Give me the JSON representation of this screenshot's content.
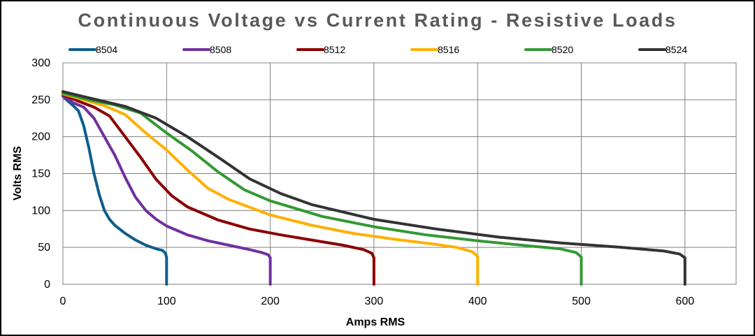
{
  "chart_data": {
    "type": "line",
    "title": "Continuous Voltage vs Current Rating - Resistive Loads",
    "xlabel": "Amps RMS",
    "ylabel": "Volts RMS",
    "xlim": [
      0,
      650
    ],
    "ylim": [
      0,
      300
    ],
    "x_ticks": [
      0,
      100,
      200,
      300,
      400,
      500,
      600
    ],
    "y_ticks": [
      0,
      50,
      100,
      150,
      200,
      250,
      300
    ],
    "x_tick_labels": [
      "0",
      "100",
      "200",
      "300",
      "400",
      "500",
      "600"
    ],
    "y_tick_labels": [
      "0",
      "50",
      "100",
      "150",
      "200",
      "250",
      "300"
    ],
    "grid": true,
    "legend_position": "top",
    "series": [
      {
        "name": "8504",
        "color": "#0E5E8C",
        "points": [
          [
            0,
            255
          ],
          [
            5,
            248
          ],
          [
            10,
            242
          ],
          [
            15,
            235
          ],
          [
            20,
            215
          ],
          [
            25,
            185
          ],
          [
            30,
            150
          ],
          [
            35,
            122
          ],
          [
            40,
            100
          ],
          [
            45,
            88
          ],
          [
            50,
            80
          ],
          [
            60,
            69
          ],
          [
            70,
            60
          ],
          [
            80,
            53
          ],
          [
            90,
            48
          ],
          [
            96,
            46
          ],
          [
            99,
            42
          ],
          [
            100,
            36
          ],
          [
            100,
            20
          ],
          [
            100,
            0
          ]
        ]
      },
      {
        "name": "8508",
        "color": "#7030A0",
        "points": [
          [
            0,
            255
          ],
          [
            10,
            246
          ],
          [
            20,
            240
          ],
          [
            30,
            225
          ],
          [
            40,
            200
          ],
          [
            50,
            175
          ],
          [
            60,
            145
          ],
          [
            70,
            118
          ],
          [
            80,
            100
          ],
          [
            90,
            88
          ],
          [
            100,
            79
          ],
          [
            120,
            67
          ],
          [
            140,
            59
          ],
          [
            160,
            53
          ],
          [
            180,
            47
          ],
          [
            192,
            43
          ],
          [
            198,
            40
          ],
          [
            200,
            36
          ],
          [
            200,
            20
          ],
          [
            200,
            0
          ]
        ]
      },
      {
        "name": "8512",
        "color": "#8B0000",
        "points": [
          [
            0,
            257
          ],
          [
            15,
            248
          ],
          [
            30,
            240
          ],
          [
            45,
            228
          ],
          [
            60,
            200
          ],
          [
            75,
            172
          ],
          [
            90,
            142
          ],
          [
            105,
            120
          ],
          [
            120,
            105
          ],
          [
            150,
            87
          ],
          [
            180,
            75
          ],
          [
            210,
            67
          ],
          [
            240,
            60
          ],
          [
            270,
            53
          ],
          [
            290,
            47
          ],
          [
            298,
            42
          ],
          [
            300,
            36
          ],
          [
            300,
            20
          ],
          [
            300,
            0
          ]
        ]
      },
      {
        "name": "8516",
        "color": "#FFB000",
        "points": [
          [
            0,
            258
          ],
          [
            20,
            250
          ],
          [
            40,
            242
          ],
          [
            60,
            230
          ],
          [
            80,
            205
          ],
          [
            100,
            182
          ],
          [
            120,
            155
          ],
          [
            140,
            130
          ],
          [
            160,
            115
          ],
          [
            200,
            94
          ],
          [
            240,
            80
          ],
          [
            280,
            69
          ],
          [
            320,
            61
          ],
          [
            360,
            54
          ],
          [
            380,
            50
          ],
          [
            395,
            44
          ],
          [
            400,
            38
          ],
          [
            400,
            20
          ],
          [
            400,
            0
          ]
        ]
      },
      {
        "name": "8520",
        "color": "#339933",
        "points": [
          [
            0,
            259
          ],
          [
            25,
            250
          ],
          [
            50,
            243
          ],
          [
            75,
            232
          ],
          [
            100,
            205
          ],
          [
            125,
            180
          ],
          [
            150,
            152
          ],
          [
            175,
            128
          ],
          [
            200,
            113
          ],
          [
            250,
            92
          ],
          [
            300,
            78
          ],
          [
            350,
            67
          ],
          [
            400,
            59
          ],
          [
            450,
            52
          ],
          [
            480,
            48
          ],
          [
            495,
            43
          ],
          [
            500,
            37
          ],
          [
            500,
            20
          ],
          [
            500,
            0
          ]
        ]
      },
      {
        "name": "8524",
        "color": "#333333",
        "points": [
          [
            0,
            261
          ],
          [
            30,
            251
          ],
          [
            60,
            241
          ],
          [
            90,
            225
          ],
          [
            120,
            200
          ],
          [
            150,
            172
          ],
          [
            180,
            143
          ],
          [
            210,
            123
          ],
          [
            240,
            108
          ],
          [
            300,
            88
          ],
          [
            360,
            75
          ],
          [
            420,
            64
          ],
          [
            480,
            56
          ],
          [
            540,
            50
          ],
          [
            580,
            45
          ],
          [
            595,
            41
          ],
          [
            600,
            36
          ],
          [
            600,
            20
          ],
          [
            600,
            0
          ]
        ]
      }
    ]
  }
}
